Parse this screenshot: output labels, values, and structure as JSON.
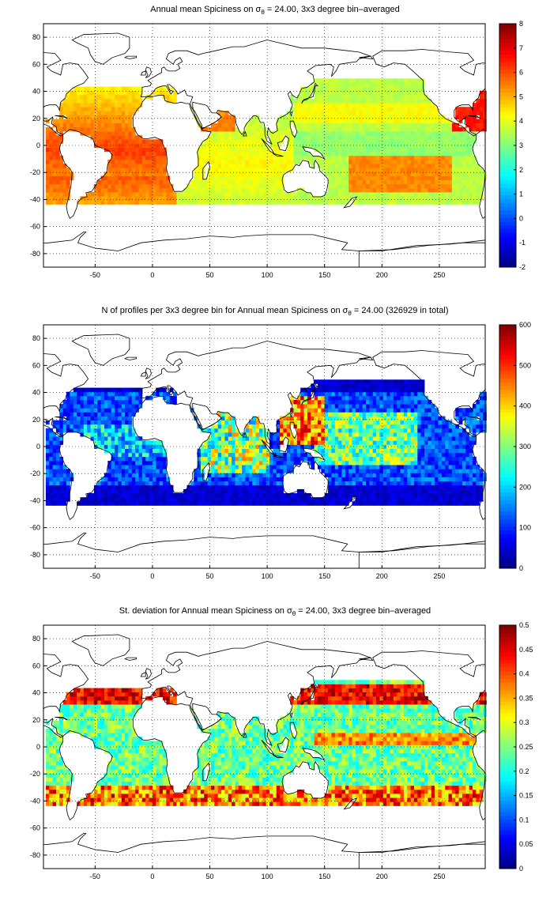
{
  "chart_data": [
    {
      "type": "heatmap",
      "title_prefix": "Annual mean Spiciness on σ",
      "title_sub": "θ",
      "title_suffix": " = 24.00, 3x3 degree bin–averaged",
      "xticks": [
        -50,
        0,
        50,
        100,
        150,
        200,
        250
      ],
      "yticks": [
        80,
        60,
        40,
        20,
        0,
        -20,
        -40,
        -60,
        -80
      ],
      "xlim": [
        -95,
        290
      ],
      "ylim": [
        -90,
        90
      ],
      "grid": true,
      "colorbar": {
        "min": -2,
        "max": 8,
        "ticks": [
          8,
          7,
          6,
          5,
          4,
          3,
          2,
          1,
          0,
          -1,
          -2
        ],
        "colormap": "jet"
      }
    },
    {
      "type": "heatmap",
      "title_prefix": "N of profiles per 3x3 degree bin for Annual mean Spiciness on σ",
      "title_sub": "θ",
      "title_suffix": " = 24.00 (326929 in total)",
      "xticks": [
        -50,
        0,
        50,
        100,
        150,
        200,
        250
      ],
      "yticks": [
        80,
        60,
        40,
        20,
        0,
        -20,
        -40,
        -60,
        -80
      ],
      "xlim": [
        -95,
        290
      ],
      "ylim": [
        -90,
        90
      ],
      "grid": true,
      "colorbar": {
        "min": 0,
        "max": 600,
        "ticks": [
          600,
          500,
          400,
          300,
          200,
          100,
          0
        ],
        "colormap": "jet"
      }
    },
    {
      "type": "heatmap",
      "title_prefix": "St. deviation for Annual mean Spiciness on σ",
      "title_sub": "θ",
      "title_suffix": " = 24.00, 3x3 degree bin–averaged",
      "xticks": [
        -50,
        0,
        50,
        100,
        150,
        200,
        250
      ],
      "yticks": [
        80,
        60,
        40,
        20,
        0,
        -20,
        -40,
        -60,
        -80
      ],
      "xlim": [
        -95,
        290
      ],
      "ylim": [
        -90,
        90
      ],
      "grid": true,
      "colorbar": {
        "min": 0,
        "max": 0.5,
        "ticks": [
          0.5,
          0.45,
          0.4,
          0.35,
          0.3,
          0.25,
          0.2,
          0.15,
          0.1,
          0.05,
          0
        ],
        "colormap": "jet"
      }
    }
  ]
}
